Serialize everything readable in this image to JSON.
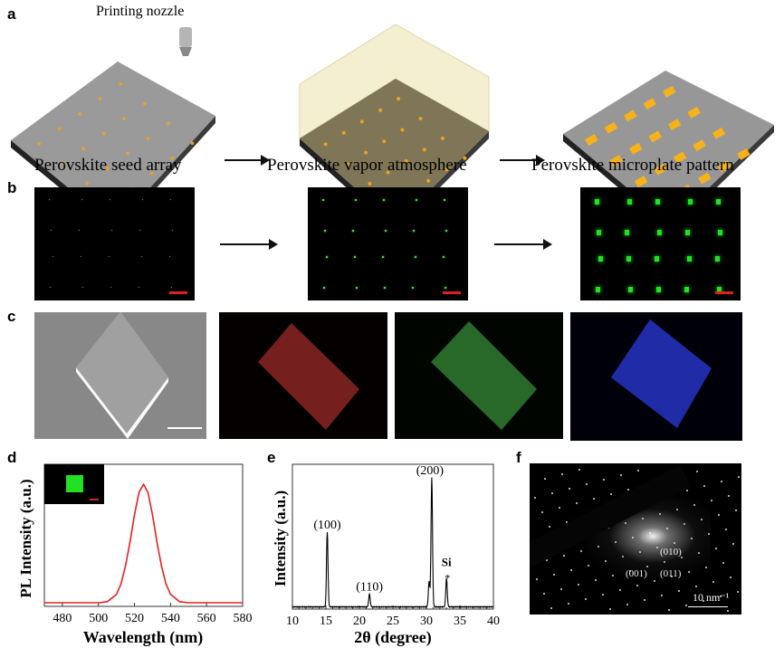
{
  "panel_labels": {
    "a": "a",
    "b": "b",
    "c": "c",
    "d": "d",
    "e": "e",
    "f": "f"
  },
  "panel_a": {
    "nozzle_label": "Printing nozzle",
    "captions": [
      "Perovskite seed array",
      "Perovskite vapor atmosphere",
      "Perovskite microplate pattern"
    ]
  },
  "panel_f": {
    "spot_labels": [
      "(010)",
      "(001)",
      "(011)"
    ],
    "scale_label": "10 nm⁻¹"
  },
  "colors": {
    "pl_line": "#e8201e",
    "xrd_line": "#000000",
    "fluorescence": "#22e022",
    "scale_bar": "#e0201a"
  },
  "chart_data": [
    {
      "id": "d",
      "type": "line",
      "xlabel": "Wavelength (nm)",
      "ylabel": "PL Intensity (a.u.)",
      "xlim": [
        470,
        580
      ],
      "xticks": [
        480,
        500,
        520,
        540,
        560,
        580
      ],
      "series": [
        {
          "name": "PL",
          "x": [
            470,
            500,
            505,
            510,
            512.5,
            515,
            517.5,
            520,
            522.5,
            525,
            527.5,
            530,
            532.5,
            535,
            537.5,
            540,
            545,
            550,
            580
          ],
          "y": [
            0,
            0,
            0.009,
            0.07,
            0.157,
            0.31,
            0.51,
            0.74,
            0.93,
            1.0,
            0.93,
            0.74,
            0.51,
            0.31,
            0.157,
            0.07,
            0.009,
            0,
            0
          ]
        }
      ]
    },
    {
      "id": "e",
      "type": "line",
      "xlabel": "2θ (degree)",
      "ylabel": "Intensity (a.u.)",
      "xlim": [
        10,
        40
      ],
      "xticks": [
        10,
        15,
        20,
        25,
        30,
        35,
        40
      ],
      "peaks": [
        {
          "x": 15.2,
          "y": 0.58,
          "label": "(100)"
        },
        {
          "x": 21.5,
          "y": 0.1,
          "label": "(110)"
        },
        {
          "x": 30.4,
          "y": 0.2,
          "label": ""
        },
        {
          "x": 30.8,
          "y": 1.0,
          "label": "(200)"
        },
        {
          "x": 33.0,
          "y": 0.22,
          "label": "Si",
          "marker": "*"
        }
      ]
    }
  ]
}
